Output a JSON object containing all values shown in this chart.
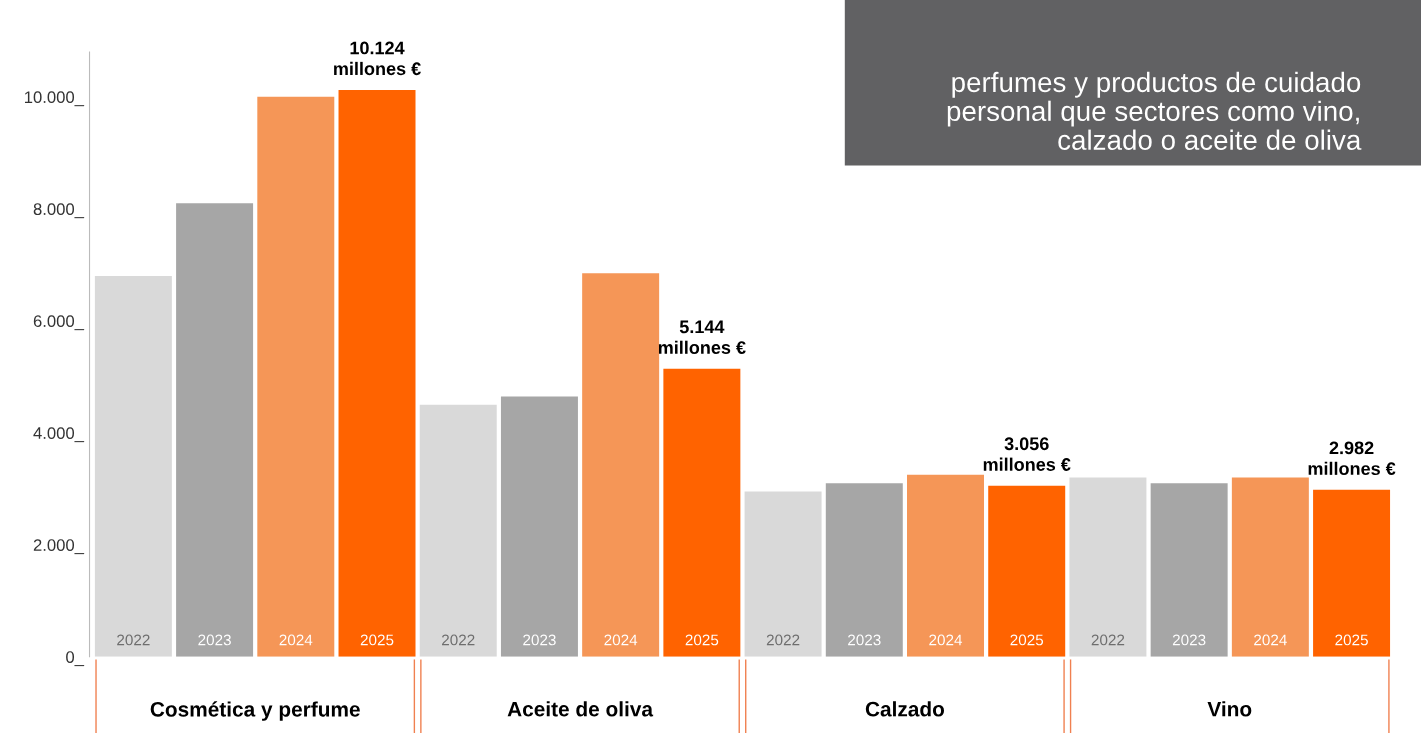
{
  "chart_data": {
    "type": "bar",
    "categories": [
      "Cosmética y perfume",
      "Aceite de oliva",
      "Calzado",
      "Vino"
    ],
    "series": [
      {
        "name": "2022",
        "color": "#d9d9d9",
        "values": [
          6800,
          4500,
          2950,
          3200
        ]
      },
      {
        "name": "2023",
        "color": "#a6a6a6",
        "values": [
          8100,
          4650,
          3100,
          3100
        ]
      },
      {
        "name": "2024",
        "color": "#f59657",
        "values": [
          10000,
          6850,
          3250,
          3200
        ]
      },
      {
        "name": "2025",
        "color": "#ff6300",
        "values": [
          10124,
          5144,
          3056,
          2982
        ],
        "value_labels": [
          "10.124\nmillones €",
          "5.144\nmillones €",
          "3.056\nmillones €",
          "2.982\nmillones €"
        ]
      }
    ],
    "ylim": [
      0,
      10800
    ],
    "yticks": [
      {
        "value": 0,
        "label": "0_"
      },
      {
        "value": 2000,
        "label": "2.000_"
      },
      {
        "value": 4000,
        "label": "4.000_"
      },
      {
        "value": 6000,
        "label": "6.000_"
      },
      {
        "value": 8000,
        "label": "8.000_"
      },
      {
        "value": 10000,
        "label": "10.000_"
      }
    ],
    "grid": false,
    "legend": false,
    "annotations": [
      "perfumes y productos de cuidado\npersonal que sectores como vino,\ncalzado o aceite de oliva"
    ]
  }
}
